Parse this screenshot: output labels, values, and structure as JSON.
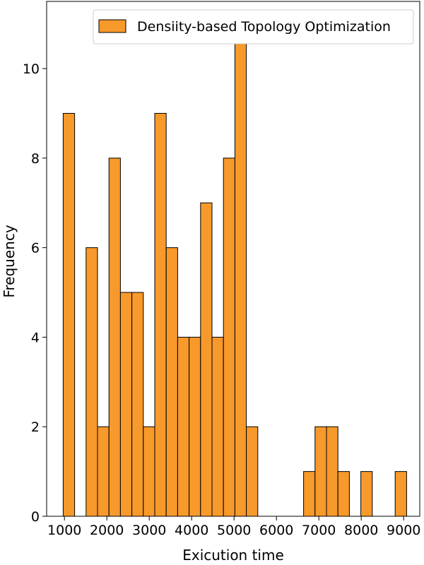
{
  "chart_data": {
    "type": "bar",
    "title": "",
    "xlabel": "Exicution time",
    "ylabel": "Frequency",
    "xlim": [
      580,
      9380
    ],
    "ylim": [
      0,
      11.5
    ],
    "x_ticks": [
      1000,
      2000,
      3000,
      4000,
      5000,
      6000,
      7000,
      8000,
      9000
    ],
    "y_ticks": [
      0,
      2,
      4,
      6,
      8,
      10
    ],
    "grid": false,
    "legend_position": "top-right",
    "bar_color": "#f7992b",
    "bin_start": 970,
    "bin_width": 270,
    "series": [
      {
        "name": "Densiity-based Topology Optimization",
        "values": [
          9,
          0,
          6,
          2,
          8,
          5,
          5,
          2,
          9,
          6,
          4,
          4,
          7,
          4,
          8,
          11,
          2,
          0,
          0,
          0,
          0,
          1,
          2,
          2,
          1,
          0,
          1,
          0,
          0,
          1
        ]
      }
    ]
  }
}
